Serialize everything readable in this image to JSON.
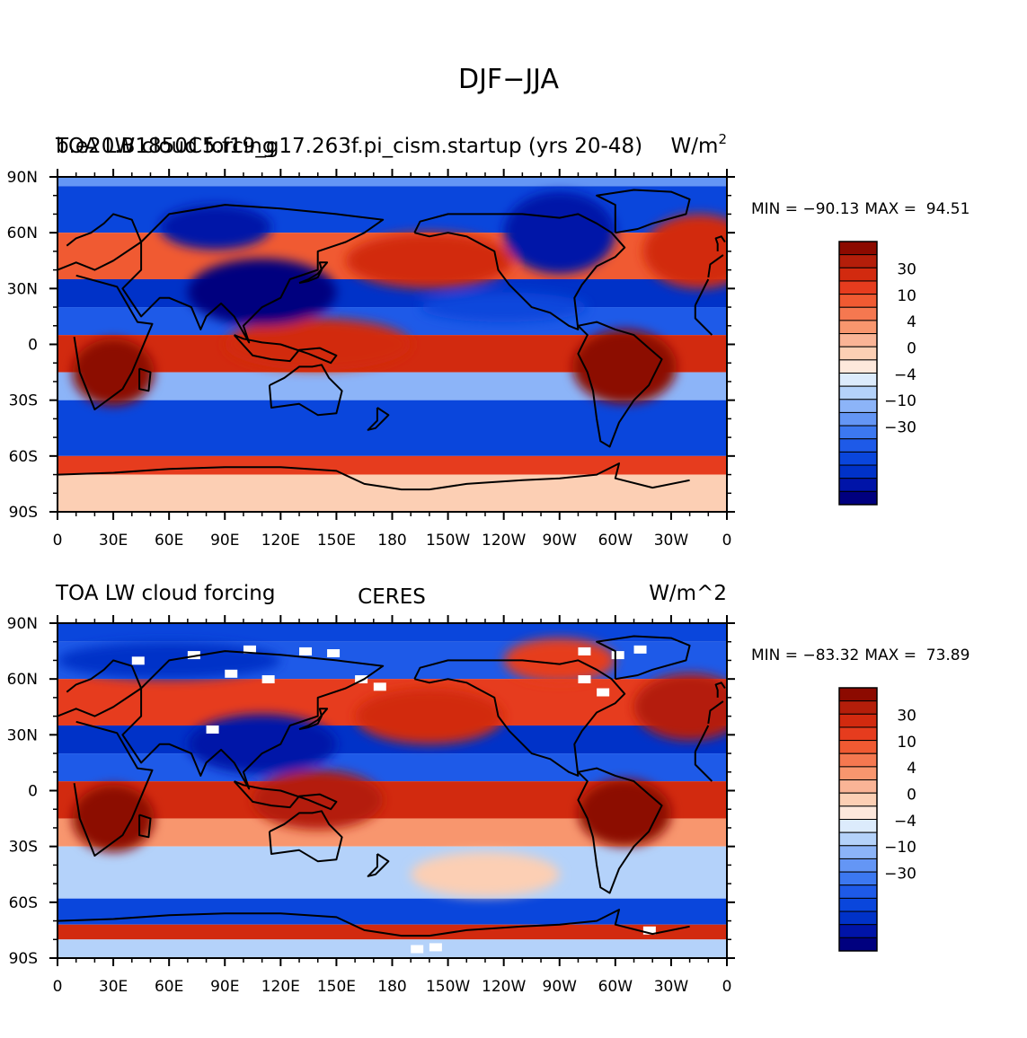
{
  "figure_title": "DJF−JJA",
  "chart_data": [
    {
      "type": "heatmap",
      "title_left": "TOA LW cloud forcing",
      "title_overlap": "b.e20.B1850C5.f19_g17.263f.pi_cism.startup (yrs 20-48)",
      "title_center": "",
      "units": "W/m",
      "units_superscript": "2",
      "min_label": "MIN = −90.13",
      "max_label": "MAX =  94.51",
      "x_ticks": [
        "0",
        "30E",
        "60E",
        "90E",
        "120E",
        "150E",
        "180",
        "150W",
        "120W",
        "90W",
        "60W",
        "30W",
        "0"
      ],
      "y_ticks": [
        "90N",
        "60N",
        "30N",
        "0",
        "30S",
        "60S",
        "90S"
      ],
      "xlim": [
        0,
        360
      ],
      "ylim": [
        -90,
        90
      ],
      "missing_values": false,
      "bands": [
        {
          "lat": [
            85,
            90
          ],
          "value": -8
        },
        {
          "lat": [
            60,
            85
          ],
          "value": -18
        },
        {
          "lat": [
            35,
            60
          ],
          "value": 14
        },
        {
          "lat": [
            20,
            35
          ],
          "value": -22
        },
        {
          "lat": [
            5,
            20
          ],
          "value": -12
        },
        {
          "lat": [
            -15,
            5
          ],
          "value": 20
        },
        {
          "lat": [
            -30,
            -15
          ],
          "value": -6
        },
        {
          "lat": [
            -60,
            -30
          ],
          "value": -18
        },
        {
          "lat": [
            -70,
            -60
          ],
          "value": 16
        },
        {
          "lat": [
            -90,
            -70
          ],
          "value": 2
        }
      ],
      "blobs": [
        {
          "lon": 30,
          "lat": -15,
          "rx": 22,
          "ry": 18,
          "value": 45
        },
        {
          "lon": 305,
          "lat": -12,
          "rx": 28,
          "ry": 20,
          "value": 45
        },
        {
          "lon": 140,
          "lat": 0,
          "rx": 50,
          "ry": 14,
          "value": 25
        },
        {
          "lon": 110,
          "lat": 28,
          "rx": 40,
          "ry": 18,
          "value": -45
        },
        {
          "lon": 200,
          "lat": 45,
          "rx": 45,
          "ry": 15,
          "value": 22
        },
        {
          "lon": 345,
          "lat": 50,
          "rx": 30,
          "ry": 20,
          "value": 25
        },
        {
          "lon": 270,
          "lat": 60,
          "rx": 30,
          "ry": 22,
          "value": -35
        },
        {
          "lon": 85,
          "lat": 63,
          "rx": 30,
          "ry": 12,
          "value": -40
        },
        {
          "lon": 240,
          "lat": 20,
          "rx": 45,
          "ry": 8,
          "value": -20
        }
      ]
    },
    {
      "type": "heatmap",
      "title_left": "TOA LW cloud forcing",
      "title_overlap": "",
      "title_center": "CERES",
      "units": "W/m^2",
      "units_superscript": "",
      "min_label": "MIN = −83.32",
      "max_label": "MAX =  73.89",
      "x_ticks": [
        "0",
        "30E",
        "60E",
        "90E",
        "120E",
        "150E",
        "180",
        "150W",
        "120W",
        "90W",
        "60W",
        "30W",
        "0"
      ],
      "y_ticks": [
        "90N",
        "60N",
        "30N",
        "0",
        "30S",
        "60S",
        "90S"
      ],
      "xlim": [
        0,
        360
      ],
      "ylim": [
        -90,
        90
      ],
      "missing_values": true,
      "bands": [
        {
          "lat": [
            80,
            90
          ],
          "value": -18
        },
        {
          "lat": [
            60,
            80
          ],
          "value": -15
        },
        {
          "lat": [
            35,
            60
          ],
          "value": 16
        },
        {
          "lat": [
            20,
            35
          ],
          "value": -28
        },
        {
          "lat": [
            5,
            20
          ],
          "value": -15
        },
        {
          "lat": [
            -15,
            5
          ],
          "value": 22
        },
        {
          "lat": [
            -30,
            -15
          ],
          "value": 6
        },
        {
          "lat": [
            -58,
            -30
          ],
          "value": -3
        },
        {
          "lat": [
            -72,
            -58
          ],
          "value": -20
        },
        {
          "lat": [
            -80,
            -72
          ],
          "value": 22
        },
        {
          "lat": [
            -90,
            -80
          ],
          "value": -4
        }
      ],
      "blobs": [
        {
          "lon": 30,
          "lat": -15,
          "rx": 22,
          "ry": 18,
          "value": 40
        },
        {
          "lon": 305,
          "lat": -12,
          "rx": 25,
          "ry": 18,
          "value": 45
        },
        {
          "lon": 140,
          "lat": -5,
          "rx": 35,
          "ry": 16,
          "value": 35
        },
        {
          "lon": 110,
          "lat": 25,
          "rx": 40,
          "ry": 16,
          "value": -40
        },
        {
          "lon": 200,
          "lat": 40,
          "rx": 40,
          "ry": 15,
          "value": 25
        },
        {
          "lon": 340,
          "lat": 45,
          "rx": 30,
          "ry": 18,
          "value": 30
        },
        {
          "lon": 60,
          "lat": 70,
          "rx": 60,
          "ry": 10,
          "value": -30
        },
        {
          "lon": 270,
          "lat": 70,
          "rx": 30,
          "ry": 12,
          "value": 15
        },
        {
          "lon": 230,
          "lat": -45,
          "rx": 40,
          "ry": 12,
          "value": 2
        }
      ]
    }
  ],
  "colorbar": {
    "labels": [
      "30",
      "10",
      "4",
      "0",
      "−4",
      "−10",
      "−30"
    ],
    "levels": [
      -50,
      -40,
      -30,
      -20,
      -15,
      -10,
      -8,
      -6,
      -4,
      -2,
      0,
      2,
      4,
      6,
      8,
      10,
      15,
      20,
      30,
      40,
      50
    ],
    "colors": [
      "#00007f",
      "#0014a8",
      "#0032c8",
      "#0a46dc",
      "#1e5ae8",
      "#3c78f0",
      "#6496f5",
      "#8cb4f8",
      "#b4d2fa",
      "#dcebfc",
      "#fde8dc",
      "#fccfb4",
      "#fab496",
      "#f8966e",
      "#f57850",
      "#f05a32",
      "#e63c1e",
      "#d22a0f",
      "#b41e0a",
      "#8c0a00"
    ]
  }
}
